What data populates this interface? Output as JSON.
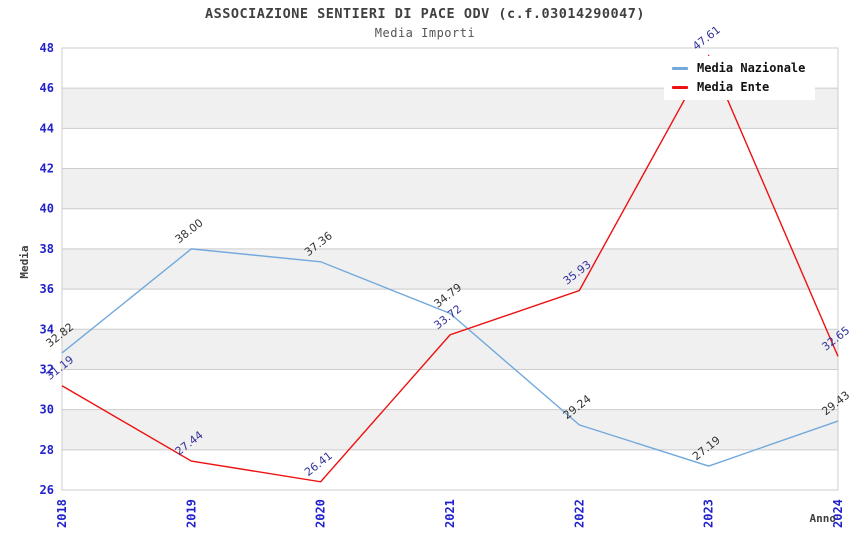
{
  "title": "ASSOCIAZIONE SENTIERI DI PACE ODV (c.f.03014290047)",
  "subtitle": "Media Importi",
  "chart_data": {
    "type": "line",
    "title": "ASSOCIAZIONE SENTIERI DI PACE ODV (c.f.03014290047)",
    "subtitle": "Media Importi",
    "xlabel": "Anno",
    "ylabel": "Media",
    "categories": [
      "2018",
      "2019",
      "2020",
      "2021",
      "2022",
      "2023",
      "2024"
    ],
    "series": [
      {
        "name": "Media Nazionale",
        "color": "#74A9DC",
        "label_color": "#333333",
        "values": [
          32.82,
          38.0,
          37.36,
          34.79,
          29.24,
          27.19,
          29.43
        ]
      },
      {
        "name": "Media Ente",
        "color": "#EE1111",
        "label_color": "#333399",
        "values": [
          31.19,
          27.44,
          26.41,
          33.72,
          35.93,
          47.61,
          32.65
        ]
      }
    ],
    "ylim": [
      26,
      48
    ],
    "ytick_step": 2,
    "grid": "horizontal",
    "band_color": "#F0F0F0",
    "grid_color": "#CCCCCC",
    "axis_tick_color": "#2222CC",
    "legend_position": "top-right"
  }
}
